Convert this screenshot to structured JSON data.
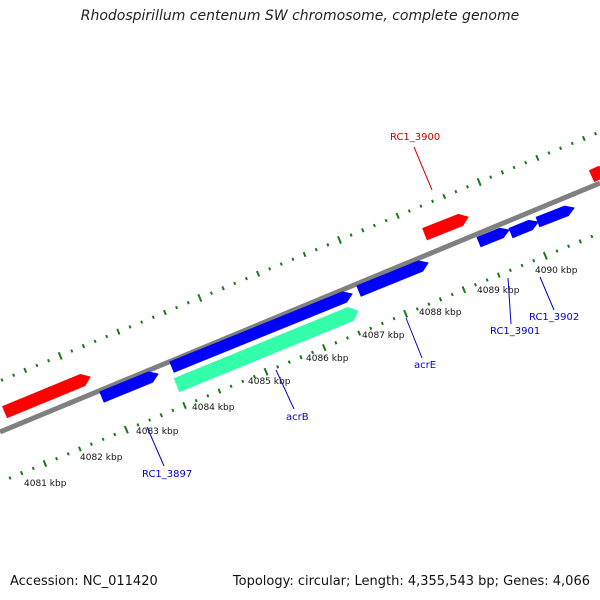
{
  "header": {
    "title": "Rhodospirillum centenum SW chromosome, complete genome"
  },
  "footer": {
    "accession": "Accession: NC_011420",
    "summary": "Topology: circular; Length: 4,355,543 bp; Genes: 4,066"
  },
  "colors": {
    "backbone": "#808080",
    "forward_gene": "#0000ff",
    "reverse_gene": "#ff0000",
    "highlight_gene": "#33ffaa",
    "gc_tick": "#1a7a1a",
    "label_blue": "#0000cc",
    "label_red": "#d00000"
  },
  "scale_ticks": [
    {
      "label": "4081 kbp"
    },
    {
      "label": "4082 kbp"
    },
    {
      "label": "4083 kbp"
    },
    {
      "label": "4084 kbp"
    },
    {
      "label": "4085 kbp"
    },
    {
      "label": "4086 kbp"
    },
    {
      "label": "4087 kbp"
    },
    {
      "label": "4088 kbp"
    },
    {
      "label": "4089 kbp"
    },
    {
      "label": "4090 kbp"
    }
  ],
  "gene_labels": [
    {
      "text": "RC1_3900",
      "color": "red"
    },
    {
      "text": "acrE",
      "color": "blue"
    },
    {
      "text": "acrB",
      "color": "blue"
    },
    {
      "text": "RC1_3897",
      "color": "blue"
    },
    {
      "text": "RC1_3901",
      "color": "blue"
    },
    {
      "text": "RC1_3902",
      "color": "blue"
    }
  ]
}
